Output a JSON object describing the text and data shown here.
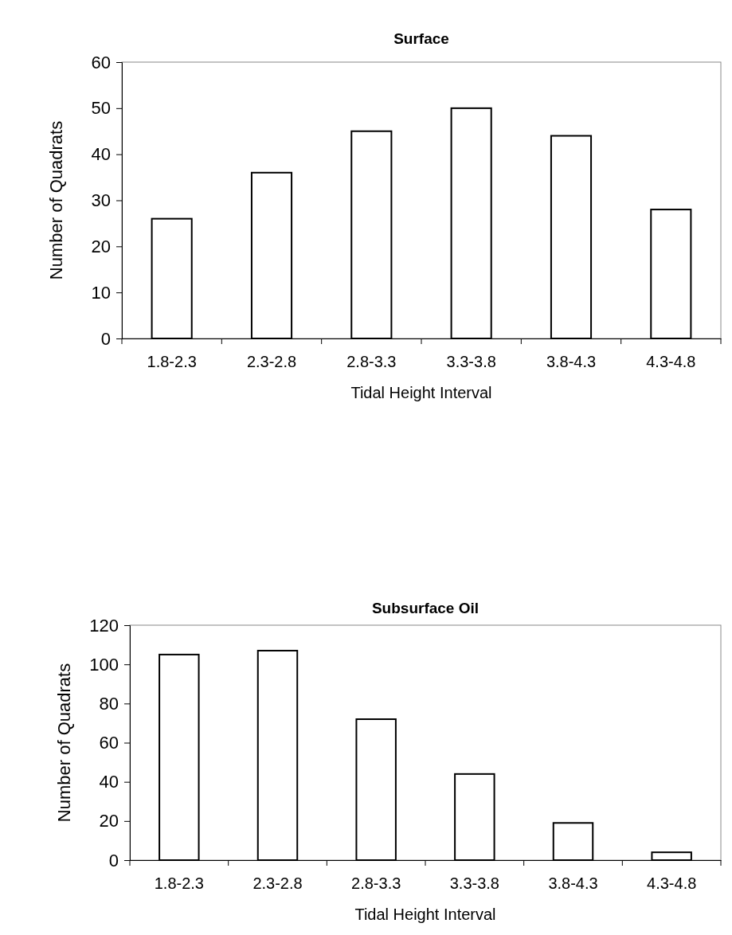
{
  "chart_data": [
    {
      "type": "bar",
      "title": "Surface",
      "xlabel": "Tidal Height Interval",
      "ylabel": "Number of Quadrats",
      "categories": [
        "1.8-2.3",
        "2.3-2.8",
        "2.8-3.3",
        "3.3-3.8",
        "3.8-4.3",
        "4.3-4.8"
      ],
      "values": [
        26,
        36,
        45,
        50,
        44,
        28
      ],
      "color": "#ffffff",
      "ylim": [
        0,
        60
      ],
      "yticks": [
        0,
        10,
        20,
        30,
        40,
        50,
        60
      ],
      "grid": false
    },
    {
      "type": "bar",
      "title": "Subsurface Oil",
      "xlabel": "Tidal Height Interval",
      "ylabel": "Number of Quadrats",
      "categories": [
        "1.8-2.3",
        "2.3-2.8",
        "2.8-3.3",
        "3.3-3.8",
        "3.8-4.3",
        "4.3-4.8"
      ],
      "values": [
        105,
        107,
        72,
        44,
        19,
        4
      ],
      "color": "#ffffff",
      "ylim": [
        0,
        120
      ],
      "yticks": [
        0,
        20,
        40,
        60,
        80,
        100,
        120
      ],
      "grid": false
    }
  ]
}
